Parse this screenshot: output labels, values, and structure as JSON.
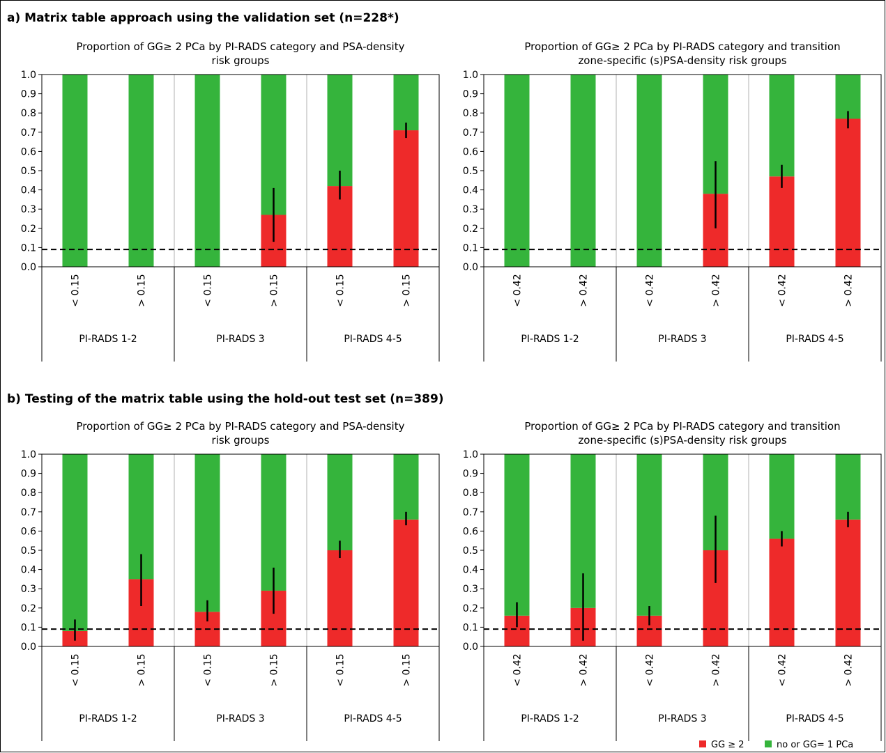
{
  "sections": [
    {
      "title": "a) Matrix table approach using the validation set (n=228*)"
    },
    {
      "title": "b) Testing of the matrix table using the hold-out test set (n=389)"
    }
  ],
  "colors": {
    "gg2": "#ee2a2a",
    "other": "#35b43c",
    "threshold_line": "#000000",
    "error_bar": "#000000"
  },
  "legend": {
    "items": [
      {
        "label": "GG ≥ 2",
        "color": "#ee2a2a"
      },
      {
        "label": "no or GG= 1 PCa",
        "color": "#35b43c"
      }
    ]
  },
  "chart_data": [
    {
      "type": "bar",
      "stacked": true,
      "title_line1": "Proportion of GG≥ 2 PCa by PI-RADS category and PSA-density",
      "title_line2": "risk groups",
      "ylim": [
        0,
        1.0
      ],
      "yticks": [
        "0.0",
        "0.1",
        "0.2",
        "0.3",
        "0.4",
        "0.5",
        "0.6",
        "0.7",
        "0.8",
        "0.9",
        "1.0"
      ],
      "threshold": 0.09,
      "groups": [
        "PI-RADS 1-2",
        "PI-RADS 3",
        "PI-RADS 4-5"
      ],
      "categories": [
        "< 0.15",
        "> 0.15",
        "< 0.15",
        "> 0.15",
        "< 0.15",
        "> 0.15"
      ],
      "series": [
        {
          "name": "GG ≥ 2",
          "values": [
            0.0,
            0.0,
            0.0,
            0.27,
            0.42,
            0.71
          ],
          "err_low": [
            null,
            null,
            null,
            0.13,
            0.35,
            0.67
          ],
          "err_high": [
            null,
            null,
            null,
            0.41,
            0.5,
            0.75
          ]
        },
        {
          "name": "no or GG= 1 PCa",
          "values": [
            1.0,
            1.0,
            1.0,
            0.73,
            0.58,
            0.29
          ]
        }
      ]
    },
    {
      "type": "bar",
      "stacked": true,
      "title_line1": "Proportion of GG≥ 2 PCa by PI-RADS category and transition",
      "title_line2": "zone-specific (s)PSA-density risk groups",
      "ylim": [
        0,
        1.0
      ],
      "yticks": [
        "0.0",
        "0.1",
        "0.2",
        "0.3",
        "0.4",
        "0.5",
        "0.6",
        "0.7",
        "0.8",
        "0.9",
        "1.0"
      ],
      "threshold": 0.09,
      "groups": [
        "PI-RADS 1-2",
        "PI-RADS 3",
        "PI-RADS 4-5"
      ],
      "categories": [
        "< 0.42",
        "> 0.42",
        "< 0.42",
        "> 0.42",
        "< 0.42",
        "> 0.42"
      ],
      "series": [
        {
          "name": "GG ≥ 2",
          "values": [
            0.0,
            0.0,
            0.0,
            0.38,
            0.47,
            0.77
          ],
          "err_low": [
            null,
            null,
            null,
            0.2,
            0.41,
            0.72
          ],
          "err_high": [
            null,
            null,
            null,
            0.55,
            0.53,
            0.81
          ]
        },
        {
          "name": "no or GG= 1 PCa",
          "values": [
            1.0,
            1.0,
            1.0,
            0.62,
            0.53,
            0.23
          ]
        }
      ]
    },
    {
      "type": "bar",
      "stacked": true,
      "title_line1": "Proportion of GG≥ 2 PCa by PI-RADS category and PSA-density",
      "title_line2": "risk groups",
      "ylim": [
        0,
        1.0
      ],
      "yticks": [
        "0.0",
        "0.1",
        "0.2",
        "0.3",
        "0.4",
        "0.5",
        "0.6",
        "0.7",
        "0.8",
        "0.9",
        "1.0"
      ],
      "threshold": 0.09,
      "groups": [
        "PI-RADS 1-2",
        "PI-RADS 3",
        "PI-RADS 4-5"
      ],
      "categories": [
        "< 0.15",
        "> 0.15",
        "< 0.15",
        "> 0.15",
        "< 0.15",
        "> 0.15"
      ],
      "series": [
        {
          "name": "GG ≥ 2",
          "values": [
            0.08,
            0.35,
            0.18,
            0.29,
            0.5,
            0.66
          ],
          "err_low": [
            0.03,
            0.21,
            0.13,
            0.17,
            0.46,
            0.63
          ],
          "err_high": [
            0.14,
            0.48,
            0.24,
            0.41,
            0.55,
            0.7
          ]
        },
        {
          "name": "no or GG= 1 PCa",
          "values": [
            0.92,
            0.65,
            0.82,
            0.71,
            0.5,
            0.34
          ]
        }
      ]
    },
    {
      "type": "bar",
      "stacked": true,
      "title_line1": "Proportion of GG≥ 2 PCa by PI-RADS category and transition",
      "title_line2": "zone-specific (s)PSA-density risk groups",
      "ylim": [
        0,
        1.0
      ],
      "yticks": [
        "0.0",
        "0.1",
        "0.2",
        "0.3",
        "0.4",
        "0.5",
        "0.6",
        "0.7",
        "0.8",
        "0.9",
        "1.0"
      ],
      "threshold": 0.09,
      "groups": [
        "PI-RADS 1-2",
        "PI-RADS 3",
        "PI-RADS 4-5"
      ],
      "categories": [
        "< 0.42",
        "> 0.42",
        "< 0.42",
        "> 0.42",
        "< 0.42",
        "> 0.42"
      ],
      "series": [
        {
          "name": "GG ≥ 2",
          "values": [
            0.16,
            0.2,
            0.16,
            0.5,
            0.56,
            0.66
          ],
          "err_low": [
            0.1,
            0.03,
            0.11,
            0.33,
            0.52,
            0.62
          ],
          "err_high": [
            0.23,
            0.38,
            0.21,
            0.68,
            0.6,
            0.7
          ]
        },
        {
          "name": "no or GG= 1 PCa",
          "values": [
            0.84,
            0.8,
            0.84,
            0.5,
            0.44,
            0.34
          ]
        }
      ]
    }
  ]
}
